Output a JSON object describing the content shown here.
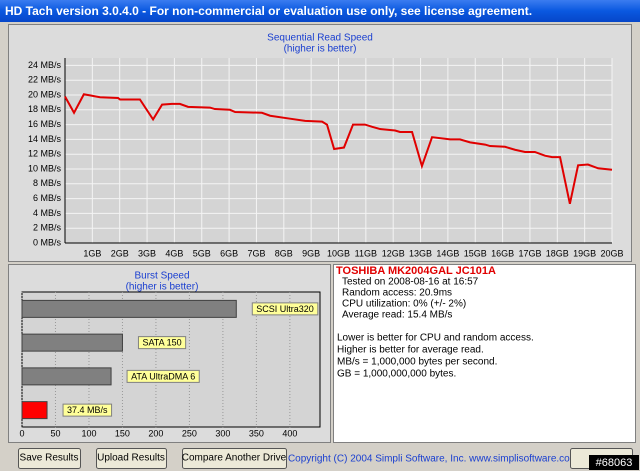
{
  "window": {
    "title": "HD Tach version 3.0.4.0  - For non-commercial or evaluation use only, see license agreement."
  },
  "chart_data": [
    {
      "type": "line",
      "title": "Sequential Read Speed",
      "subtitle": "(higher is better)",
      "color": "#e00000",
      "grid": true,
      "x": [
        0,
        0.33,
        0.69,
        1.28,
        1.94,
        2.01,
        2.74,
        3.22,
        3.55,
        3.91,
        4.2,
        4.5,
        5.3,
        5.48,
        6.03,
        6.22,
        7.2,
        7.5,
        8.23,
        8.78,
        9.4,
        9.58,
        9.84,
        10.2,
        10.53,
        10.97,
        11.23,
        11.52,
        12.07,
        12.25,
        12.69,
        13.05,
        13.42,
        14.08,
        14.44,
        14.81,
        15.36,
        15.54,
        16.09,
        16.45,
        16.82,
        17.18,
        17.55,
        17.81,
        18.1,
        18.46,
        18.76,
        19.12,
        19.49,
        20
      ],
      "values": [
        19.8,
        17.6,
        20.1,
        19.7,
        19.6,
        19.4,
        19.4,
        16.7,
        18.7,
        18.8,
        18.8,
        18.4,
        18.3,
        18.1,
        18.0,
        17.7,
        17.6,
        17.2,
        16.8,
        16.5,
        16.4,
        16.0,
        12.7,
        12.9,
        16.0,
        16.0,
        15.7,
        15.4,
        15.2,
        15.0,
        15.0,
        10.4,
        14.3,
        14.0,
        14.0,
        13.6,
        13.3,
        13.1,
        13.0,
        12.6,
        12.3,
        12.3,
        11.8,
        11.6,
        11.6,
        5.3,
        10.5,
        10.6,
        10.1,
        9.9
      ],
      "xlim": [
        0,
        20
      ],
      "ylim": [
        0,
        25
      ],
      "xticks": [
        {
          "value": 1,
          "label": "1GB"
        },
        {
          "value": 2,
          "label": "2GB"
        },
        {
          "value": 3,
          "label": "3GB"
        },
        {
          "value": 4,
          "label": "4GB"
        },
        {
          "value": 5,
          "label": "5GB"
        },
        {
          "value": 6,
          "label": "6GB"
        },
        {
          "value": 7,
          "label": "7GB"
        },
        {
          "value": 8,
          "label": "8GB"
        },
        {
          "value": 9,
          "label": "9GB"
        },
        {
          "value": 10,
          "label": "10GB"
        },
        {
          "value": 11,
          "label": "11GB"
        },
        {
          "value": 12,
          "label": "12GB"
        },
        {
          "value": 13,
          "label": "13GB"
        },
        {
          "value": 14,
          "label": "14GB"
        },
        {
          "value": 15,
          "label": "15GB"
        },
        {
          "value": 16,
          "label": "16GB"
        },
        {
          "value": 17,
          "label": "17GB"
        },
        {
          "value": 18,
          "label": "18GB"
        },
        {
          "value": 19,
          "label": "19GB"
        },
        {
          "value": 20,
          "label": "20GB"
        }
      ],
      "yticks": [
        {
          "value": 0,
          "label": "0 MB/s"
        },
        {
          "value": 2,
          "label": "2 MB/s"
        },
        {
          "value": 4,
          "label": "4 MB/s"
        },
        {
          "value": 6,
          "label": "6 MB/s"
        },
        {
          "value": 8,
          "label": "8 MB/s"
        },
        {
          "value": 10,
          "label": "10 MB/s"
        },
        {
          "value": 12,
          "label": "12 MB/s"
        },
        {
          "value": 14,
          "label": "14 MB/s"
        },
        {
          "value": 16,
          "label": "16 MB/s"
        },
        {
          "value": 18,
          "label": "18 MB/s"
        },
        {
          "value": 20,
          "label": "20 MB/s"
        },
        {
          "value": 22,
          "label": "22 MB/s"
        },
        {
          "value": 24,
          "label": "24 MB/s"
        }
      ]
    },
    {
      "type": "bar",
      "orientation": "horizontal",
      "title": "Burst Speed",
      "subtitle": "(higher is better)",
      "categories": [
        "SCSI Ultra320",
        "SATA 150",
        "ATA UltraDMA 6",
        null
      ],
      "values": [
        320,
        150,
        133,
        37.4
      ],
      "value_labels": [
        null,
        null,
        null,
        "37.4 MB/s"
      ],
      "colors": [
        "#808080",
        "#808080",
        "#808080",
        "#ff0000"
      ],
      "xlim": [
        0,
        445
      ],
      "xticks": [
        0,
        50,
        100,
        150,
        200,
        250,
        300,
        350,
        400
      ]
    }
  ],
  "drive_info": {
    "model": "TOSHIBA MK2004GAL JC101A",
    "details": [
      "Tested on 2008-08-16 at 16:57",
      "Random access: 20.9ms",
      "CPU utilization: 0% (+/- 2%)",
      "Average read: 15.4 MB/s"
    ],
    "notes": [
      "Lower is better for CPU and random access.",
      "Higher is better for average read.",
      "MB/s = 1,000,000 bytes per second.",
      "GB = 1,000,000,000 bytes."
    ]
  },
  "buttons": [
    "Save Results",
    "Upload Results",
    "Compare Another Drive"
  ],
  "copyright": "Copyright (C) 2004 Simpli Software, Inc. www.simplisoftware.com",
  "watermark": "#68063"
}
